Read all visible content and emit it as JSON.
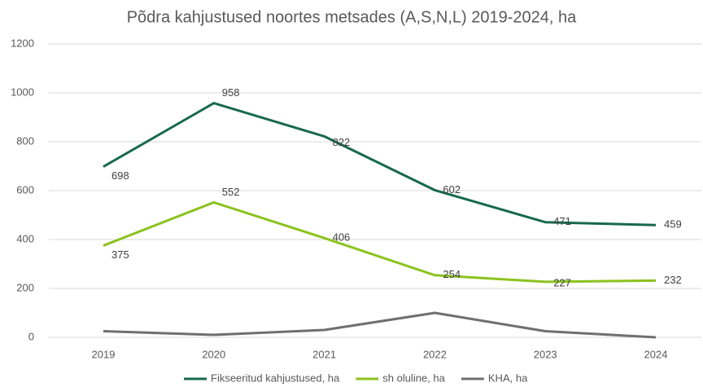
{
  "chart_data": {
    "type": "line",
    "title": "Põdra kahjustused noortes metsades (A,S,N,L) 2019-2024, ha",
    "categories": [
      "2019",
      "2020",
      "2021",
      "2022",
      "2023",
      "2024"
    ],
    "series": [
      {
        "name": "Fikseeritud kahjustused, ha",
        "color": "#17694b",
        "values": [
          698,
          958,
          822,
          602,
          471,
          459
        ]
      },
      {
        "name": "sh oluline, ha",
        "color": "#8cc21e",
        "values": [
          375,
          552,
          406,
          254,
          227,
          232
        ]
      },
      {
        "name": "KHA, ha",
        "color": "#6f6f6f",
        "values": [
          25,
          10,
          30,
          100,
          25,
          0
        ]
      }
    ],
    "data_labels": [
      true,
      true,
      false
    ],
    "ylim": [
      0,
      1200
    ],
    "yticks": [
      0,
      200,
      400,
      600,
      800,
      1000,
      1200
    ],
    "grid": true,
    "legend": "bottom"
  }
}
